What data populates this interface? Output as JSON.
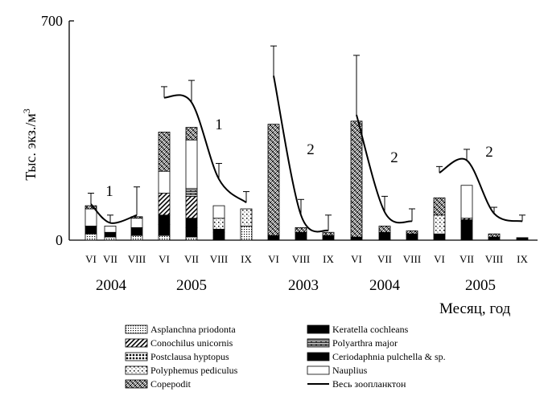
{
  "chart_data": {
    "type": "bar",
    "stacked": true,
    "ylabel": "Тыс. экз./м",
    "ylabel_superscript": "3",
    "xlabel": "Месяц, год",
    "ylim": [
      0,
      700
    ],
    "y_ticks": [
      "0",
      "700"
    ],
    "categories": [
      "VI",
      "VII",
      "VIII",
      "VI",
      "VII",
      "VIII",
      "IX",
      "VI",
      "VIII",
      "IX",
      "VI",
      "VII",
      "VIII",
      "VI",
      "VII",
      "VIII",
      "IX"
    ],
    "years": [
      "2004",
      "2005",
      "2003",
      "2004",
      "2005"
    ],
    "group_labels": [
      "1",
      "1",
      "2",
      "2",
      "2"
    ],
    "series": [
      {
        "name": "Asplanchna priodonta",
        "fill": "dots",
        "values": [
          20,
          10,
          15,
          15,
          10,
          0,
          45,
          0,
          0,
          0,
          0,
          0,
          0,
          0,
          0,
          0,
          0
        ]
      },
      {
        "name": "Postclausa hyptopus",
        "fill": "bigdots",
        "values": [
          0,
          0,
          0,
          0,
          0,
          0,
          0,
          0,
          0,
          0,
          0,
          0,
          0,
          0,
          0,
          0,
          0
        ]
      },
      {
        "name": "Keratella cochleans",
        "fill": "black",
        "values": [
          25,
          15,
          25,
          35,
          30,
          25,
          0,
          15,
          25,
          15,
          10,
          25,
          20,
          20,
          60,
          10,
          8
        ]
      },
      {
        "name": "Ceriodaphnia pulchella & sp.",
        "fill": "black",
        "values": [
          0,
          0,
          0,
          30,
          30,
          10,
          0,
          0,
          0,
          0,
          0,
          0,
          0,
          0,
          5,
          0,
          0
        ]
      },
      {
        "name": "Polyphemus pediculus",
        "fill": "sparse",
        "values": [
          0,
          0,
          0,
          0,
          0,
          35,
          55,
          0,
          0,
          0,
          0,
          0,
          0,
          60,
          0,
          0,
          0
        ]
      },
      {
        "name": "Conochilus unicornis",
        "fill": "hatch",
        "values": [
          0,
          0,
          0,
          70,
          70,
          0,
          0,
          0,
          0,
          0,
          0,
          0,
          0,
          0,
          5,
          0,
          0
        ]
      },
      {
        "name": "Polyarthra major",
        "fill": "bricks",
        "values": [
          0,
          0,
          0,
          0,
          25,
          0,
          0,
          0,
          0,
          0,
          0,
          0,
          0,
          0,
          0,
          0,
          0
        ]
      },
      {
        "name": "Nauplius",
        "fill": "white",
        "values": [
          55,
          20,
          30,
          70,
          155,
          40,
          0,
          0,
          0,
          0,
          0,
          0,
          0,
          0,
          105,
          0,
          0
        ]
      },
      {
        "name": "Copepodit",
        "fill": "cross",
        "values": [
          10,
          0,
          5,
          125,
          40,
          0,
          0,
          355,
          15,
          10,
          370,
          20,
          10,
          55,
          0,
          10,
          0
        ]
      }
    ],
    "total_line": {
      "name": "Весь зоопланктон",
      "groups": [
        {
          "label": "1",
          "points": [
            [
              0,
              115
            ],
            [
              1,
              55
            ],
            [
              2,
              80
            ]
          ]
        },
        {
          "label": "1",
          "points": [
            [
              3,
              455
            ],
            [
              4,
              440
            ],
            [
              5,
              195
            ],
            [
              6,
              120
            ]
          ]
        },
        {
          "label": "2",
          "points": [
            [
              7,
              525
            ],
            [
              8,
              80
            ],
            [
              9,
              30
            ]
          ]
        },
        {
          "label": "2",
          "points": [
            [
              10,
              400
            ],
            [
              11,
              90
            ],
            [
              12,
              60
            ]
          ]
        },
        {
          "label": "2",
          "points": [
            [
              13,
              215
            ],
            [
              14,
              255
            ],
            [
              15,
              85
            ],
            [
              16,
              60
            ]
          ]
        }
      ]
    },
    "error_tops": [
      150,
      80,
      170,
      490,
      510,
      245,
      155,
      620,
      130,
      80,
      590,
      140,
      100,
      235,
      290,
      105,
      80
    ],
    "legend": {
      "left": [
        "Asplanchna priodonta",
        "Conochilus unicornis",
        "Postclausa hyptopus",
        "Polyphemus pediculus",
        "Copepodit"
      ],
      "right": [
        "Keratella cochleans",
        "Polyarthra major",
        "Ceriodaphnia pulchella & sp.",
        "Nauplius",
        "Весь зоопланктон"
      ]
    }
  }
}
